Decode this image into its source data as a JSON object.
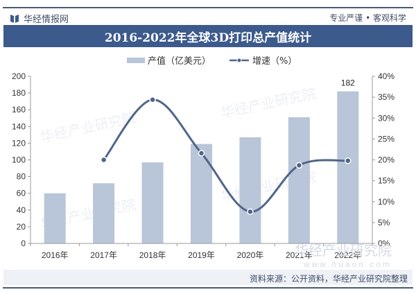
{
  "header": {
    "brand": "华经情报网",
    "slogan": "专业严谨 • 客观科学"
  },
  "title": "2016-2022年全球3D打印总产值统计",
  "legend": {
    "bar_label": "产值（亿美元）",
    "line_label": "增速（%）"
  },
  "footer": {
    "source": "资料来源：公开资料，华经产业研究院整理",
    "watermark": "华经产业研究院",
    "watermark_url": "www.huaon.com"
  },
  "colors": {
    "banner": "#3c5a8c",
    "bar": "#b9c5d8",
    "line": "#4f6589"
  },
  "chart_data": {
    "type": "bar",
    "title": "2016-2022年全球3D打印总产值统计",
    "categories": [
      "2016年",
      "2017年",
      "2018年",
      "2019年",
      "2020年",
      "2021年",
      "2022年"
    ],
    "series": [
      {
        "name": "产值（亿美元）",
        "type": "bar",
        "axis": "left",
        "values": [
          60,
          72,
          97,
          119,
          127,
          151,
          182
        ]
      },
      {
        "name": "增速（%）",
        "type": "line",
        "axis": "right",
        "values": [
          null,
          20.0,
          34.4,
          21.6,
          7.6,
          18.7,
          19.8
        ]
      }
    ],
    "data_labels": [
      {
        "category": "2022年",
        "value": "182"
      }
    ],
    "ylabel": "",
    "xlabel": "",
    "ylim": [
      0,
      200
    ],
    "yticks": [
      "0",
      "20",
      "40",
      "60",
      "80",
      "100",
      "120",
      "140",
      "160",
      "180",
      "200"
    ],
    "y2lim": [
      0,
      40
    ],
    "y2ticks": [
      "0%",
      "5%",
      "10%",
      "15%",
      "20%",
      "25%",
      "30%",
      "35%",
      "40%"
    ],
    "grid": false,
    "legend_position": "top"
  }
}
